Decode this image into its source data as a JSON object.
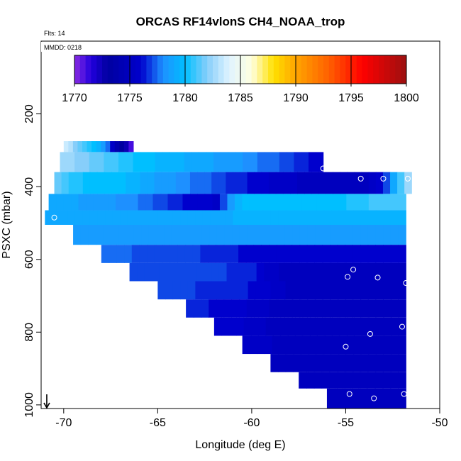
{
  "chart_data": {
    "type": "heatmap",
    "title": "ORCAS RF14vlonS CH4_NOAA_trop",
    "flts_label": "Flts: 14",
    "mmdd_label": "MMDD: 0218",
    "xlabel": "Longitude (deg E)",
    "ylabel": "PSXC (mbar)",
    "xlim": [
      -71.2,
      -50.0
    ],
    "ylim": [
      1010,
      0
    ],
    "x_ticks": [
      -70,
      -65,
      -60,
      -55,
      -50
    ],
    "x_tick_labels": [
      "-70",
      "-65",
      "-60",
      "-55",
      "-50"
    ],
    "y_ticks": [
      200,
      400,
      600,
      800,
      1000
    ],
    "y_tick_labels": [
      "200",
      "400",
      "600",
      "800",
      "1000"
    ],
    "colorbar": {
      "min": 1770,
      "max": 1800,
      "ticks": [
        1770,
        1775,
        1780,
        1785,
        1790,
        1795,
        1800
      ],
      "tick_labels": [
        "1770",
        "1775",
        "1780",
        "1785",
        "1790",
        "1795",
        "1800"
      ],
      "stops": [
        {
          "v": 1770,
          "color": "#8a2be2"
        },
        {
          "v": 1771.5,
          "color": "#2200dd"
        },
        {
          "v": 1773,
          "color": "#0000a0"
        },
        {
          "v": 1776,
          "color": "#0000cd"
        },
        {
          "v": 1778,
          "color": "#1e90ff"
        },
        {
          "v": 1780,
          "color": "#00bfff"
        },
        {
          "v": 1782,
          "color": "#87cefa"
        },
        {
          "v": 1784,
          "color": "#e0f4ff"
        },
        {
          "v": 1786,
          "color": "#ffffe0"
        },
        {
          "v": 1788,
          "color": "#ffe000"
        },
        {
          "v": 1790,
          "color": "#ffa500"
        },
        {
          "v": 1793,
          "color": "#ff6000"
        },
        {
          "v": 1796,
          "color": "#ff0000"
        },
        {
          "v": 1800,
          "color": "#9b1010"
        }
      ]
    },
    "rows": [
      {
        "p_top": 275,
        "p_bot": 305,
        "x0": -70.0,
        "x1": -66.3,
        "values": [
          1783.5,
          1783,
          1782,
          1781.5,
          1781,
          1780.5,
          1780,
          1779.5,
          1778.5,
          1777.5,
          1775.5,
          1774,
          1773,
          1772.5,
          1771
        ]
      },
      {
        "p_top": 305,
        "p_bot": 360,
        "x0": -70.2,
        "x1": -56.2,
        "values": [
          1782.5,
          1782.5,
          1782,
          1782,
          1781.5,
          1781.5,
          1781,
          1781,
          1780.5,
          1780.5,
          1780,
          1780,
          1780,
          1779.5,
          1779.5,
          1779.5,
          1779.5,
          1779,
          1779,
          1779,
          1779,
          1778.5,
          1778.5,
          1778.5,
          1778.5,
          1778,
          1778,
          1777.5,
          1777.5,
          1777.5,
          1777,
          1777,
          1776.5,
          1776.5,
          1776,
          1776
        ]
      },
      {
        "p_top": 360,
        "p_bot": 420,
        "x0": -70.5,
        "x1": -51.5,
        "values": [
          1781.5,
          1781,
          1780.5,
          1780.5,
          1780,
          1780,
          1780,
          1780,
          1780,
          1780,
          1779.5,
          1779.5,
          1779,
          1779,
          1778.5,
          1778.5,
          1778.5,
          1778,
          1778,
          1777.5,
          1777.5,
          1777.5,
          1777,
          1777,
          1776.5,
          1776.5,
          1776.5,
          1776,
          1776,
          1776,
          1775.5,
          1775.5,
          1775.5,
          1775.5,
          1775,
          1775,
          1775,
          1775,
          1775,
          1775,
          1775,
          1775,
          1775,
          1775,
          1775.5,
          1776,
          1777,
          1779,
          1781,
          1782.5
        ]
      },
      {
        "p_top": 420,
        "p_bot": 465,
        "x0": -70.8,
        "x1": -51.8,
        "values": [
          1779,
          1779,
          1779,
          1779,
          1778.5,
          1778.5,
          1778.5,
          1778.5,
          1778.5,
          1778,
          1778,
          1778,
          1777.5,
          1777.5,
          1777,
          1777,
          1776.5,
          1776.5,
          1776,
          1776,
          1776,
          1776,
          1775.5,
          1777,
          1778.5,
          1779.5,
          1780,
          1780,
          1780,
          1780,
          1780,
          1780,
          1780,
          1780,
          1780,
          1780,
          1780,
          1780,
          1780,
          1780,
          1780.5,
          1780.5,
          1780.5,
          1781,
          1781,
          1781,
          1781,
          1781
        ]
      },
      {
        "p_top": 465,
        "p_bot": 505,
        "x0": -71.0,
        "x1": -51.8,
        "values": [
          1779,
          1779,
          1779,
          1779,
          1779,
          1779,
          1779,
          1779,
          1779,
          1779,
          1779,
          1779,
          1779,
          1779,
          1779,
          1779,
          1779,
          1779,
          1779,
          1779,
          1779,
          1779,
          1779,
          1779,
          1779,
          1779.5,
          1779.5,
          1779.5,
          1779.5,
          1779.5,
          1779.5,
          1779.5,
          1779.5,
          1779.5,
          1779.5,
          1779.5,
          1779.5,
          1779.5,
          1779.5,
          1779.5,
          1779.5,
          1779.5,
          1779.5,
          1779.5,
          1779.5,
          1779.5,
          1779.5,
          1779.5
        ]
      },
      {
        "p_top": 505,
        "p_bot": 560,
        "x0": -69.5,
        "x1": -51.8,
        "values": [
          1778.5,
          1778.5,
          1778.5,
          1778.5,
          1778.5,
          1778.5,
          1778.5,
          1778.5,
          1778.5,
          1778.5,
          1778.5,
          1778.5,
          1778.5,
          1778.5,
          1778.5,
          1778.5,
          1778.5,
          1778.5,
          1778.5,
          1778.5,
          1778.5,
          1778.5,
          1778.5,
          1778.5,
          1778.5,
          1778.5,
          1778.5,
          1778.5,
          1778.5,
          1778.5,
          1778.5,
          1778.5,
          1778.5,
          1778.5,
          1778.5,
          1778.5,
          1778.5,
          1778.5,
          1778.5,
          1778.5,
          1778.5,
          1778.5,
          1778.5,
          1778.5
        ]
      },
      {
        "p_top": 560,
        "p_bot": 610,
        "x0": -68.0,
        "x1": -51.8,
        "values": [
          1777.5,
          1777.5,
          1777.5,
          1777.5,
          1777,
          1777,
          1777,
          1777,
          1777,
          1777,
          1777,
          1777,
          1777,
          1776.5,
          1776.5,
          1776.5,
          1776.5,
          1776.5,
          1776,
          1776,
          1776,
          1776,
          1776,
          1776,
          1776,
          1776,
          1776,
          1776,
          1776,
          1776,
          1776,
          1776,
          1776,
          1776,
          1776,
          1776,
          1776,
          1776,
          1776,
          1776
        ]
      },
      {
        "p_top": 610,
        "p_bot": 660,
        "x0": -66.5,
        "x1": -51.8,
        "values": [
          1777,
          1777,
          1777,
          1777,
          1777,
          1777,
          1777,
          1777,
          1777,
          1777,
          1777,
          1777,
          1777,
          1776.5,
          1776.5,
          1776.5,
          1776.5,
          1776,
          1775.5,
          1775.5,
          1775,
          1775,
          1775,
          1775,
          1775,
          1775,
          1775,
          1775,
          1775,
          1775,
          1775,
          1775,
          1775,
          1775,
          1775,
          1775,
          1775
        ]
      },
      {
        "p_top": 660,
        "p_bot": 710,
        "x0": -65.0,
        "x1": -51.8,
        "values": [
          1777,
          1777,
          1777,
          1777,
          1777,
          1776.5,
          1776.5,
          1776.5,
          1776.5,
          1776.5,
          1776.5,
          1776.5,
          1776,
          1776,
          1776,
          1775.5,
          1775.5,
          1775,
          1775,
          1775,
          1775,
          1775,
          1775,
          1775,
          1775,
          1775,
          1775,
          1775,
          1775,
          1775,
          1775,
          1775,
          1775
        ]
      },
      {
        "p_top": 710,
        "p_bot": 760,
        "x0": -63.5,
        "x1": -51.8,
        "values": [
          1776.5,
          1776.5,
          1776.5,
          1776,
          1776,
          1776,
          1776,
          1776,
          1775.5,
          1775.5,
          1775.5,
          1775,
          1775,
          1775,
          1775,
          1775,
          1775,
          1775,
          1775,
          1775,
          1775,
          1775,
          1775,
          1775,
          1775,
          1775,
          1775,
          1775,
          1775
        ]
      },
      {
        "p_top": 760,
        "p_bot": 810,
        "x0": -62.0,
        "x1": -51.8,
        "values": [
          1776,
          1776,
          1776,
          1776,
          1775.5,
          1775.5,
          1775.5,
          1775,
          1775,
          1775,
          1775,
          1775,
          1775,
          1775,
          1775,
          1775,
          1775,
          1775,
          1775,
          1775,
          1775,
          1775,
          1775,
          1775,
          1775,
          1775
        ]
      },
      {
        "p_top": 810,
        "p_bot": 860,
        "x0": -60.5,
        "x1": -51.8,
        "values": [
          1775.5,
          1775.5,
          1775.5,
          1775.5,
          1775,
          1775,
          1775,
          1775,
          1775,
          1775,
          1775,
          1775,
          1775,
          1775,
          1775,
          1775,
          1775,
          1775,
          1775,
          1775,
          1775,
          1775
        ]
      },
      {
        "p_top": 860,
        "p_bot": 910,
        "x0": -59.0,
        "x1": -51.8,
        "values": [
          1775,
          1775,
          1775,
          1775,
          1775,
          1775,
          1775,
          1775,
          1775,
          1775,
          1775,
          1775,
          1775,
          1775,
          1775,
          1775,
          1775,
          1775
        ]
      },
      {
        "p_top": 910,
        "p_bot": 955,
        "x0": -57.5,
        "x1": -51.8,
        "values": [
          1775,
          1775,
          1775,
          1775,
          1775,
          1775,
          1775,
          1775,
          1775,
          1775,
          1775,
          1775,
          1775,
          1775
        ]
      },
      {
        "p_top": 955,
        "p_bot": 1010,
        "x0": -56.0,
        "x1": -51.8,
        "values": [
          1775,
          1775,
          1775,
          1775,
          1775,
          1775,
          1775,
          1775,
          1775,
          1775
        ]
      }
    ],
    "points": [
      {
        "x": -56.2,
        "p": 350
      },
      {
        "x": -54.2,
        "p": 378
      },
      {
        "x": -53.0,
        "p": 378
      },
      {
        "x": -51.7,
        "p": 378
      },
      {
        "x": -70.5,
        "p": 485
      },
      {
        "x": -54.6,
        "p": 628
      },
      {
        "x": -54.9,
        "p": 648
      },
      {
        "x": -53.3,
        "p": 650
      },
      {
        "x": -51.8,
        "p": 665
      },
      {
        "x": -52.0,
        "p": 785
      },
      {
        "x": -53.7,
        "p": 805
      },
      {
        "x": -55.0,
        "p": 840
      },
      {
        "x": -54.8,
        "p": 970
      },
      {
        "x": -53.5,
        "p": 982
      },
      {
        "x": -51.9,
        "p": 970
      }
    ],
    "arrow": {
      "x": -70.9,
      "symbol": "down-arrow"
    }
  }
}
